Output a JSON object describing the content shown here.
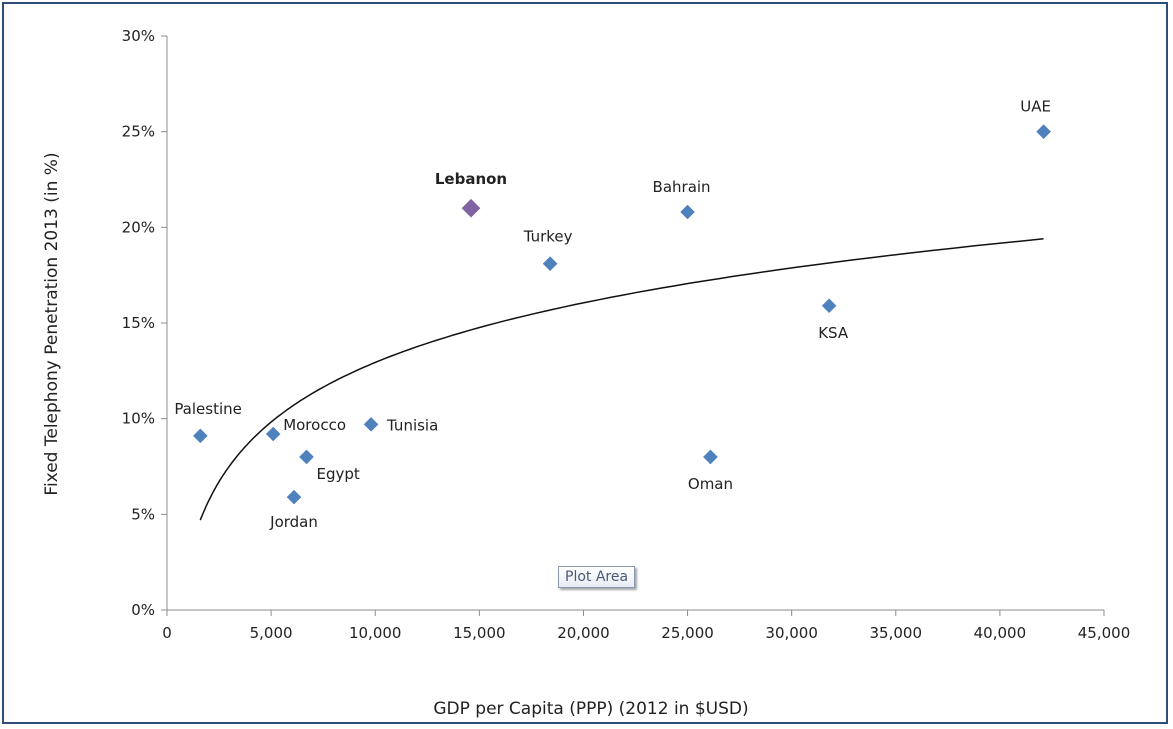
{
  "chart_data": {
    "type": "scatter",
    "xlabel": "GDP per Capita  (PPP) (2012 in $USD)",
    "ylabel": "Fixed Telephony Penetration  2013 (in %)",
    "xlim": [
      0,
      45000
    ],
    "ylim": [
      0,
      30
    ],
    "x_ticks": [
      0,
      5000,
      10000,
      15000,
      20000,
      25000,
      30000,
      35000,
      40000,
      45000
    ],
    "x_tick_labels": [
      "0",
      "5,000",
      "10,000",
      "15,000",
      "20,000",
      "25,000",
      "30,000",
      "35,000",
      "40,000",
      "45,000"
    ],
    "y_ticks": [
      0,
      5,
      10,
      15,
      20,
      25,
      30
    ],
    "y_tick_labels": [
      "0%",
      "5%",
      "10%",
      "15%",
      "20%",
      "25%",
      "30%"
    ],
    "grid": false,
    "points": [
      {
        "label": "Palestine",
        "x": 1600,
        "y": 9.1
      },
      {
        "label": "Morocco",
        "x": 5100,
        "y": 9.2
      },
      {
        "label": "Egypt",
        "x": 6700,
        "y": 8.0
      },
      {
        "label": "Jordan",
        "x": 6100,
        "y": 5.9
      },
      {
        "label": "Tunisia",
        "x": 9800,
        "y": 9.7
      },
      {
        "label": "Lebanon",
        "x": 14600,
        "y": 21.0,
        "highlight": true
      },
      {
        "label": "Turkey",
        "x": 18400,
        "y": 18.1
      },
      {
        "label": "Bahrain",
        "x": 25000,
        "y": 20.8
      },
      {
        "label": "Oman",
        "x": 26100,
        "y": 8.0
      },
      {
        "label": "KSA",
        "x": 31800,
        "y": 15.9
      },
      {
        "label": "UAE",
        "x": 42100,
        "y": 25.0
      }
    ],
    "trendline": {
      "type": "logarithmic",
      "x_range": [
        1600,
        42100
      ],
      "y_at_start": 4.7,
      "y_at_end": 19.4
    },
    "marker_color": "#4f81bd",
    "highlight_color": "#8064a2"
  },
  "tooltip": {
    "text": "Plot Area"
  }
}
